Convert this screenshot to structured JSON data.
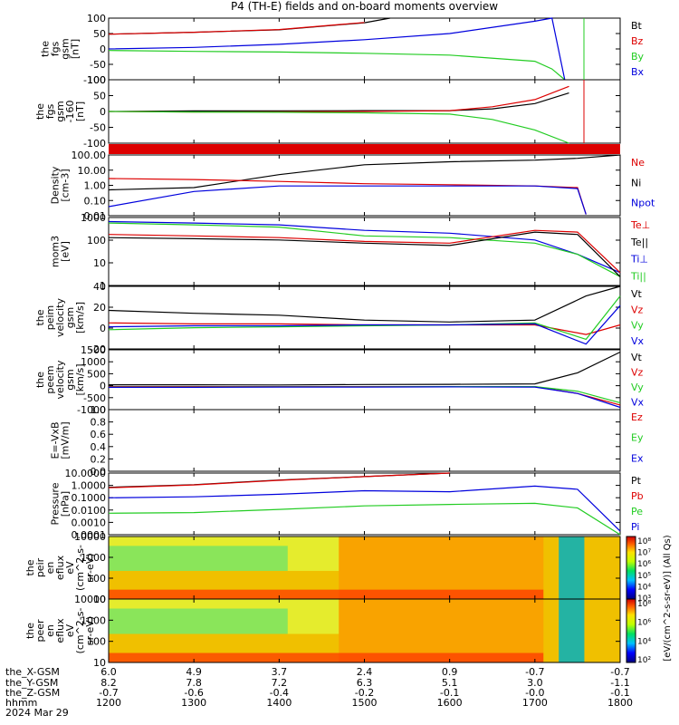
{
  "title": "P4 (TH-E) fields and on-board moments overview",
  "colors": {
    "black": "#000000",
    "red": "#dd0000",
    "green": "#22cc22",
    "blue": "#0000dd"
  },
  "chart_data": [
    {
      "type": "line",
      "id": "fgs_gsm",
      "ylabel": [
        "the",
        "fgs",
        "gsm",
        "[nT]"
      ],
      "ylim": [
        -100,
        100
      ],
      "yticks": [
        "100",
        "50",
        "0",
        "-50",
        "-100"
      ],
      "legend": [
        {
          "text": "Bt",
          "color": "black"
        },
        {
          "text": "Bz",
          "color": "red"
        },
        {
          "text": "By",
          "color": "green"
        },
        {
          "text": "Bx",
          "color": "blue"
        }
      ],
      "series": [
        {
          "name": "Bt",
          "color": "black",
          "x": [
            1200,
            1300,
            1400,
            1500,
            1530
          ],
          "y": [
            48,
            54,
            62,
            85,
            100
          ]
        },
        {
          "name": "Bz",
          "color": "red",
          "x": [
            1200,
            1300,
            1400,
            1500
          ],
          "y": [
            48,
            54,
            63,
            86
          ]
        },
        {
          "name": "By",
          "color": "green",
          "x": [
            1200,
            1300,
            1400,
            1500,
            1600,
            1700,
            1720,
            1735
          ],
          "y": [
            -5,
            -8,
            -10,
            -14,
            -20,
            -40,
            -65,
            -100
          ]
        },
        {
          "name": "Bx",
          "color": "blue",
          "x": [
            1200,
            1300,
            1400,
            1500,
            1600,
            1700,
            1720,
            1735
          ],
          "y": [
            0,
            5,
            15,
            30,
            50,
            90,
            100,
            -100
          ]
        }
      ]
    },
    {
      "type": "line",
      "id": "fgs_gsm_dc",
      "ylabel": [
        "the",
        "fgs",
        "gsm",
        "-160",
        "[nT]"
      ],
      "ylim": [
        -120,
        120
      ],
      "yticks": [
        "100",
        "50",
        "0",
        "-50",
        "-100"
      ],
      "legend": [],
      "series": [
        {
          "name": "",
          "color": "black",
          "x": [
            1200,
            1300,
            1400,
            1500,
            1600,
            1650,
            1700,
            1740
          ],
          "y": [
            0,
            2,
            2,
            3,
            3,
            10,
            30,
            70
          ]
        },
        {
          "name": "",
          "color": "red",
          "x": [
            1200,
            1300,
            1400,
            1500,
            1600,
            1650,
            1700,
            1740
          ],
          "y": [
            0,
            -2,
            -1,
            0,
            3,
            18,
            45,
            95
          ]
        },
        {
          "name": "",
          "color": "green",
          "x": [
            1200,
            1300,
            1400,
            1500,
            1600,
            1650,
            1700,
            1740
          ],
          "y": [
            0,
            -2,
            -3,
            -5,
            -10,
            -30,
            -70,
            -120
          ]
        }
      ]
    },
    {
      "type": "line",
      "id": "density",
      "log": true,
      "ylabel": [
        "Density",
        "[cm-3]"
      ],
      "ylim": [
        0.004,
        200
      ],
      "yticks": [
        "100.00",
        "10.00",
        "1.00",
        "0.10",
        "0.01"
      ],
      "legend": [
        {
          "text": "Ne",
          "color": "red"
        },
        {
          "text": "Ni",
          "color": "black"
        },
        {
          "text": "Npot",
          "color": "blue"
        }
      ],
      "series": [
        {
          "name": "Ni",
          "color": "black",
          "x": [
            1200,
            1300,
            1400,
            1500,
            1600,
            1700,
            1750,
            1800
          ],
          "y": [
            0.4,
            0.6,
            6,
            35,
            60,
            80,
            110,
            200
          ]
        },
        {
          "name": "Ne",
          "color": "red",
          "x": [
            1200,
            1300,
            1400,
            1500,
            1600,
            1700,
            1750,
            1760
          ],
          "y": [
            3,
            2.5,
            1.8,
            1.2,
            1.0,
            0.8,
            0.6,
            0.005
          ]
        },
        {
          "name": "Npot",
          "color": "blue",
          "x": [
            1200,
            1300,
            1400,
            1500,
            1600,
            1700,
            1750,
            1760
          ],
          "y": [
            0.02,
            0.3,
            0.8,
            0.8,
            0.8,
            0.8,
            0.5,
            0.005
          ]
        }
      ]
    },
    {
      "type": "line",
      "id": "moments_temp",
      "log": true,
      "ylabel": [
        "mom3",
        "[eV]"
      ],
      "ylim": [
        1,
        5000
      ],
      "yticks": [
        "1000",
        "100",
        "10",
        "1"
      ],
      "legend": [
        {
          "text": "Te⊥",
          "color": "red"
        },
        {
          "text": "Te||",
          "color": "black"
        },
        {
          "text": "Ti⊥",
          "color": "blue"
        },
        {
          "text": "Ti||",
          "color": "green"
        }
      ],
      "series": [
        {
          "name": "Ti⊥",
          "color": "blue",
          "x": [
            1200,
            1300,
            1400,
            1500,
            1600,
            1700,
            1750,
            1800
          ],
          "y": [
            3000,
            2500,
            2000,
            1000,
            700,
            300,
            50,
            5
          ]
        },
        {
          "name": "Ti||",
          "color": "green",
          "x": [
            1200,
            1300,
            1400,
            1500,
            1600,
            1700,
            1750,
            1800
          ],
          "y": [
            2500,
            2000,
            1500,
            500,
            400,
            200,
            50,
            3
          ]
        },
        {
          "name": "Te⊥",
          "color": "red",
          "x": [
            1200,
            1300,
            1400,
            1500,
            1600,
            1700,
            1750,
            1800
          ],
          "y": [
            600,
            500,
            400,
            250,
            200,
            1000,
            800,
            5
          ]
        },
        {
          "name": "Te||",
          "color": "black",
          "x": [
            1200,
            1300,
            1400,
            1500,
            1600,
            1700,
            1750,
            1800
          ],
          "y": [
            400,
            350,
            300,
            200,
            150,
            800,
            600,
            3
          ]
        }
      ]
    },
    {
      "type": "line",
      "id": "peim_velocity",
      "ylabel": [
        "the",
        "peim",
        "velocity",
        "gsm",
        "[km/s]"
      ],
      "ylim": [
        -25,
        40
      ],
      "yticks": [
        "40",
        "20",
        "0",
        "-20"
      ],
      "legend": [
        {
          "text": "Vt",
          "color": "black"
        },
        {
          "text": "Vz",
          "color": "red"
        },
        {
          "text": "Vy",
          "color": "green"
        },
        {
          "text": "Vx",
          "color": "blue"
        }
      ],
      "series": [
        {
          "name": "Vt",
          "color": "black",
          "x": [
            1200,
            1300,
            1400,
            1500,
            1600,
            1700,
            1760,
            1800
          ],
          "y": [
            15,
            12,
            10,
            5,
            3,
            5,
            30,
            40
          ]
        },
        {
          "name": "Vz",
          "color": "red",
          "x": [
            1200,
            1300,
            1400,
            1500,
            1600,
            1700,
            1760,
            1800
          ],
          "y": [
            2,
            1,
            1,
            0,
            0,
            0,
            -10,
            0
          ]
        },
        {
          "name": "Vy",
          "color": "green",
          "x": [
            1200,
            1300,
            1400,
            1500,
            1600,
            1700,
            1760,
            1800
          ],
          "y": [
            -5,
            -3,
            -2,
            -1,
            0,
            2,
            -15,
            30
          ]
        },
        {
          "name": "Vx",
          "color": "blue",
          "x": [
            1200,
            1300,
            1400,
            1500,
            1600,
            1700,
            1760,
            1800
          ],
          "y": [
            -2,
            -1,
            -1,
            0,
            0,
            1,
            -20,
            20
          ]
        }
      ]
    },
    {
      "type": "line",
      "id": "peem_velocity",
      "ylabel": [
        "the",
        "peem",
        "velocity",
        "gsm",
        "[km/s]"
      ],
      "ylim": [
        -1000,
        1600
      ],
      "yticks": [
        "1500",
        "1000",
        "500",
        "0",
        "-500",
        "-1000"
      ],
      "legend": [
        {
          "text": "Vt",
          "color": "black"
        },
        {
          "text": "Vz",
          "color": "red"
        },
        {
          "text": "Vy",
          "color": "green"
        },
        {
          "text": "Vx",
          "color": "blue"
        }
      ],
      "series": [
        {
          "name": "Vt",
          "color": "black",
          "x": [
            1200,
            1300,
            1400,
            1500,
            1600,
            1700,
            1750,
            1800
          ],
          "y": [
            80,
            80,
            70,
            90,
            100,
            120,
            600,
            1500
          ]
        },
        {
          "name": "Vz",
          "color": "red",
          "x": [
            1200,
            1300,
            1400,
            1500,
            1600,
            1700,
            1750,
            1800
          ],
          "y": [
            0,
            0,
            0,
            0,
            0,
            0,
            -300,
            -800
          ]
        },
        {
          "name": "Vy",
          "color": "green",
          "x": [
            1200,
            1300,
            1400,
            1500,
            1600,
            1700,
            1750,
            1800
          ],
          "y": [
            -20,
            -20,
            -10,
            -10,
            0,
            0,
            -200,
            -700
          ]
        },
        {
          "name": "Vx",
          "color": "blue",
          "x": [
            1200,
            1300,
            1400,
            1500,
            1600,
            1700,
            1750,
            1800
          ],
          "y": [
            -30,
            -30,
            -20,
            -20,
            -10,
            -20,
            -300,
            -900
          ]
        }
      ]
    },
    {
      "type": "line",
      "id": "efield",
      "ylabel": [
        "E=-VxB",
        "[mV/m]"
      ],
      "ylim": [
        0,
        1
      ],
      "yticks": [
        "1.0",
        "0.8",
        "0.6",
        "0.4",
        "0.2",
        "0.0"
      ],
      "legend": [
        {
          "text": "Ez",
          "color": "red"
        },
        {
          "text": "Ey",
          "color": "green"
        },
        {
          "text": "Ex",
          "color": "blue"
        }
      ],
      "series": []
    },
    {
      "type": "line",
      "id": "pressure",
      "log": true,
      "ylabel": [
        "Pressure",
        "[nPa]"
      ],
      "ylim": [
        0.0001,
        20
      ],
      "yticks": [
        "10.0000",
        "1.0000",
        "0.1000",
        "0.0100",
        "0.0010",
        "0.0001"
      ],
      "legend": [
        {
          "text": "Pt",
          "color": "black"
        },
        {
          "text": "Pb",
          "color": "red"
        },
        {
          "text": "Pe",
          "color": "green"
        },
        {
          "text": "Pi",
          "color": "blue"
        }
      ],
      "series": [
        {
          "name": "Pt",
          "color": "black",
          "x": [
            1200,
            1300,
            1400,
            1500,
            1600
          ],
          "y": [
            1.2,
            2,
            5,
            10,
            20
          ]
        },
        {
          "name": "Pb",
          "color": "red",
          "x": [
            1200,
            1300,
            1400,
            1500,
            1600
          ],
          "y": [
            1.1,
            1.9,
            4.8,
            10,
            20
          ]
        },
        {
          "name": "Pi",
          "color": "blue",
          "x": [
            1200,
            1300,
            1400,
            1500,
            1600,
            1700,
            1750,
            1800
          ],
          "y": [
            0.15,
            0.18,
            0.3,
            0.6,
            0.5,
            1.5,
            0.8,
            0.0002
          ]
        },
        {
          "name": "Pe",
          "color": "green",
          "x": [
            1200,
            1300,
            1400,
            1500,
            1600,
            1700,
            1750,
            1800
          ],
          "y": [
            0.007,
            0.008,
            0.015,
            0.03,
            0.04,
            0.05,
            0.02,
            0.0001
          ]
        }
      ]
    },
    {
      "type": "heatmap",
      "id": "peir_eflux",
      "ylabel": [
        "the",
        "peir",
        "en",
        "eflux",
        "eV",
        "(cm^2-s-",
        "sr-eV)"
      ],
      "ylim": [
        5,
        30000
      ],
      "yticks": [
        "10000",
        "1000",
        "100",
        "10"
      ]
    },
    {
      "type": "heatmap",
      "id": "peer_eflux",
      "ylabel": [
        "the",
        "peer",
        "en",
        "eflux",
        "eV",
        "(cm^2-s-",
        "sr-eV)"
      ],
      "ylim": [
        5,
        30000
      ],
      "yticks": [
        "10000",
        "1000",
        "100",
        "10"
      ]
    }
  ],
  "colorbar": {
    "label": "[eV/(cm^2-s-sr-eV)] (All Qs)",
    "top_ticks": [
      "10⁸",
      "10⁷",
      "10⁶",
      "10⁵",
      "10⁴",
      "10³"
    ],
    "bottom_ticks": [
      "10⁸",
      "10⁶",
      "10⁴",
      "10²"
    ]
  },
  "xaxis": {
    "ticks": [
      1200,
      1300,
      1400,
      1500,
      1600,
      1700,
      1800
    ],
    "rows": [
      {
        "label": "the_X-GSM",
        "values": [
          "6.0",
          "4.9",
          "3.7",
          "2.4",
          "0.9",
          "-0.7",
          "-0.7"
        ]
      },
      {
        "label": "the_Y-GSM",
        "values": [
          "8.2",
          "7.8",
          "7.2",
          "6.3",
          "5.1",
          "3.0",
          "-1.1"
        ]
      },
      {
        "label": "the_Z-GSM",
        "values": [
          "-0.7",
          "-0.6",
          "-0.4",
          "-0.2",
          "-0.1",
          "-0.0",
          "-0.1"
        ]
      },
      {
        "label": "hhmm",
        "values": [
          "1200",
          "1300",
          "1400",
          "1500",
          "1600",
          "1700",
          "1800"
        ]
      }
    ],
    "date": "2024 Mar 29"
  }
}
